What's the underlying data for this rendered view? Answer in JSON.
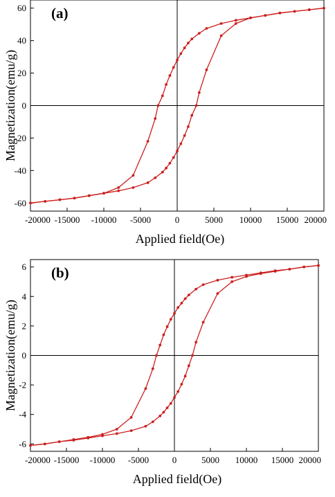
{
  "chart_data": [
    {
      "panel_label": "(a)",
      "type": "line",
      "xlabel": "Applied field(Oe)",
      "ylabel": "Magnetization(emu/g)",
      "xlim": [
        -20000,
        20000
      ],
      "ylim": [
        -65,
        65
      ],
      "xticks": [
        -20000,
        -15000,
        -10000,
        -5000,
        0,
        5000,
        10000,
        15000,
        20000
      ],
      "yticks": [
        -60,
        -40,
        -20,
        0,
        20,
        40,
        60
      ],
      "grid": false,
      "zero_lines": true,
      "line_color": "#cc1f1f",
      "series": [
        {
          "values": [
            [
              20000,
              60
            ],
            [
              18000,
              59
            ],
            [
              16000,
              58
            ],
            [
              14000,
              57
            ],
            [
              12000,
              55.5
            ],
            [
              10000,
              54
            ],
            [
              8000,
              50.5
            ],
            [
              6000,
              43
            ],
            [
              4000,
              22
            ],
            [
              3000,
              8
            ],
            [
              2600,
              0
            ],
            [
              2000,
              -6
            ],
            [
              1500,
              -13
            ],
            [
              1000,
              -18.5
            ],
            [
              500,
              -23.5
            ],
            [
              0,
              -28
            ],
            [
              -500,
              -32
            ],
            [
              -1000,
              -35.5
            ],
            [
              -1500,
              -38.5
            ],
            [
              -2000,
              -41
            ],
            [
              -3000,
              -44.5
            ],
            [
              -4000,
              -47.5
            ],
            [
              -6000,
              -50.5
            ],
            [
              -8000,
              -52.5
            ],
            [
              -10000,
              -54
            ],
            [
              -12000,
              -55.5
            ],
            [
              -14000,
              -57
            ],
            [
              -16000,
              -58
            ],
            [
              -18000,
              -59
            ],
            [
              -20000,
              -60
            ]
          ]
        },
        {
          "values": [
            [
              -20000,
              -60
            ],
            [
              -18000,
              -59
            ],
            [
              -16000,
              -58
            ],
            [
              -14000,
              -57
            ],
            [
              -12000,
              -55.5
            ],
            [
              -10000,
              -54
            ],
            [
              -8000,
              -50.5
            ],
            [
              -6000,
              -43
            ],
            [
              -4000,
              -22
            ],
            [
              -3000,
              -8
            ],
            [
              -2600,
              0
            ],
            [
              -2000,
              6
            ],
            [
              -1500,
              13
            ],
            [
              -1000,
              18.5
            ],
            [
              -500,
              23.5
            ],
            [
              0,
              28
            ],
            [
              500,
              32
            ],
            [
              1000,
              35.5
            ],
            [
              1500,
              38.5
            ],
            [
              2000,
              41
            ],
            [
              3000,
              44.5
            ],
            [
              4000,
              47.5
            ],
            [
              6000,
              50.5
            ],
            [
              8000,
              52.5
            ],
            [
              10000,
              54
            ],
            [
              12000,
              55.5
            ],
            [
              14000,
              57
            ],
            [
              16000,
              58
            ],
            [
              18000,
              59
            ],
            [
              20000,
              60
            ]
          ]
        }
      ]
    },
    {
      "panel_label": "(b)",
      "type": "line",
      "xlabel": "Applied field(Oe)",
      "ylabel": "Magnetization(emu/g)",
      "xlim": [
        -20000,
        20000
      ],
      "ylim": [
        -6.5,
        6.5
      ],
      "xticks": [
        -20000,
        -15000,
        -10000,
        -5000,
        0,
        5000,
        10000,
        15000,
        20000
      ],
      "yticks": [
        -6,
        -4,
        -2,
        0,
        2,
        4,
        6
      ],
      "grid": false,
      "zero_lines": true,
      "line_color": "#cc1f1f",
      "series": [
        {
          "values": [
            [
              20000,
              6.1
            ],
            [
              18000,
              6.0
            ],
            [
              16000,
              5.85
            ],
            [
              14000,
              5.7
            ],
            [
              12000,
              5.55
            ],
            [
              10000,
              5.35
            ],
            [
              8000,
              5.0
            ],
            [
              6000,
              4.2
            ],
            [
              4000,
              2.25
            ],
            [
              3000,
              0.9
            ],
            [
              2500,
              0
            ],
            [
              2000,
              -0.7
            ],
            [
              1500,
              -1.4
            ],
            [
              1000,
              -1.95
            ],
            [
              500,
              -2.45
            ],
            [
              0,
              -2.85
            ],
            [
              -500,
              -3.25
            ],
            [
              -1000,
              -3.55
            ],
            [
              -1500,
              -3.85
            ],
            [
              -2000,
              -4.1
            ],
            [
              -3000,
              -4.5
            ],
            [
              -4000,
              -4.8
            ],
            [
              -6000,
              -5.1
            ],
            [
              -8000,
              -5.3
            ],
            [
              -10000,
              -5.45
            ],
            [
              -12000,
              -5.6
            ],
            [
              -14000,
              -5.75
            ],
            [
              -16000,
              -5.85
            ],
            [
              -18000,
              -6.0
            ],
            [
              -20000,
              -6.1
            ]
          ]
        },
        {
          "values": [
            [
              -20000,
              -6.1
            ],
            [
              -18000,
              -6.0
            ],
            [
              -16000,
              -5.85
            ],
            [
              -14000,
              -5.7
            ],
            [
              -12000,
              -5.55
            ],
            [
              -10000,
              -5.35
            ],
            [
              -8000,
              -5.0
            ],
            [
              -6000,
              -4.2
            ],
            [
              -4000,
              -2.25
            ],
            [
              -3000,
              -0.9
            ],
            [
              -2500,
              0
            ],
            [
              -2000,
              0.7
            ],
            [
              -1500,
              1.4
            ],
            [
              -1000,
              1.95
            ],
            [
              -500,
              2.45
            ],
            [
              0,
              2.85
            ],
            [
              500,
              3.25
            ],
            [
              1000,
              3.55
            ],
            [
              1500,
              3.85
            ],
            [
              2000,
              4.1
            ],
            [
              3000,
              4.5
            ],
            [
              4000,
              4.8
            ],
            [
              6000,
              5.1
            ],
            [
              8000,
              5.3
            ],
            [
              10000,
              5.45
            ],
            [
              12000,
              5.6
            ],
            [
              14000,
              5.75
            ],
            [
              16000,
              5.85
            ],
            [
              18000,
              6.0
            ],
            [
              20000,
              6.1
            ]
          ]
        }
      ]
    }
  ]
}
